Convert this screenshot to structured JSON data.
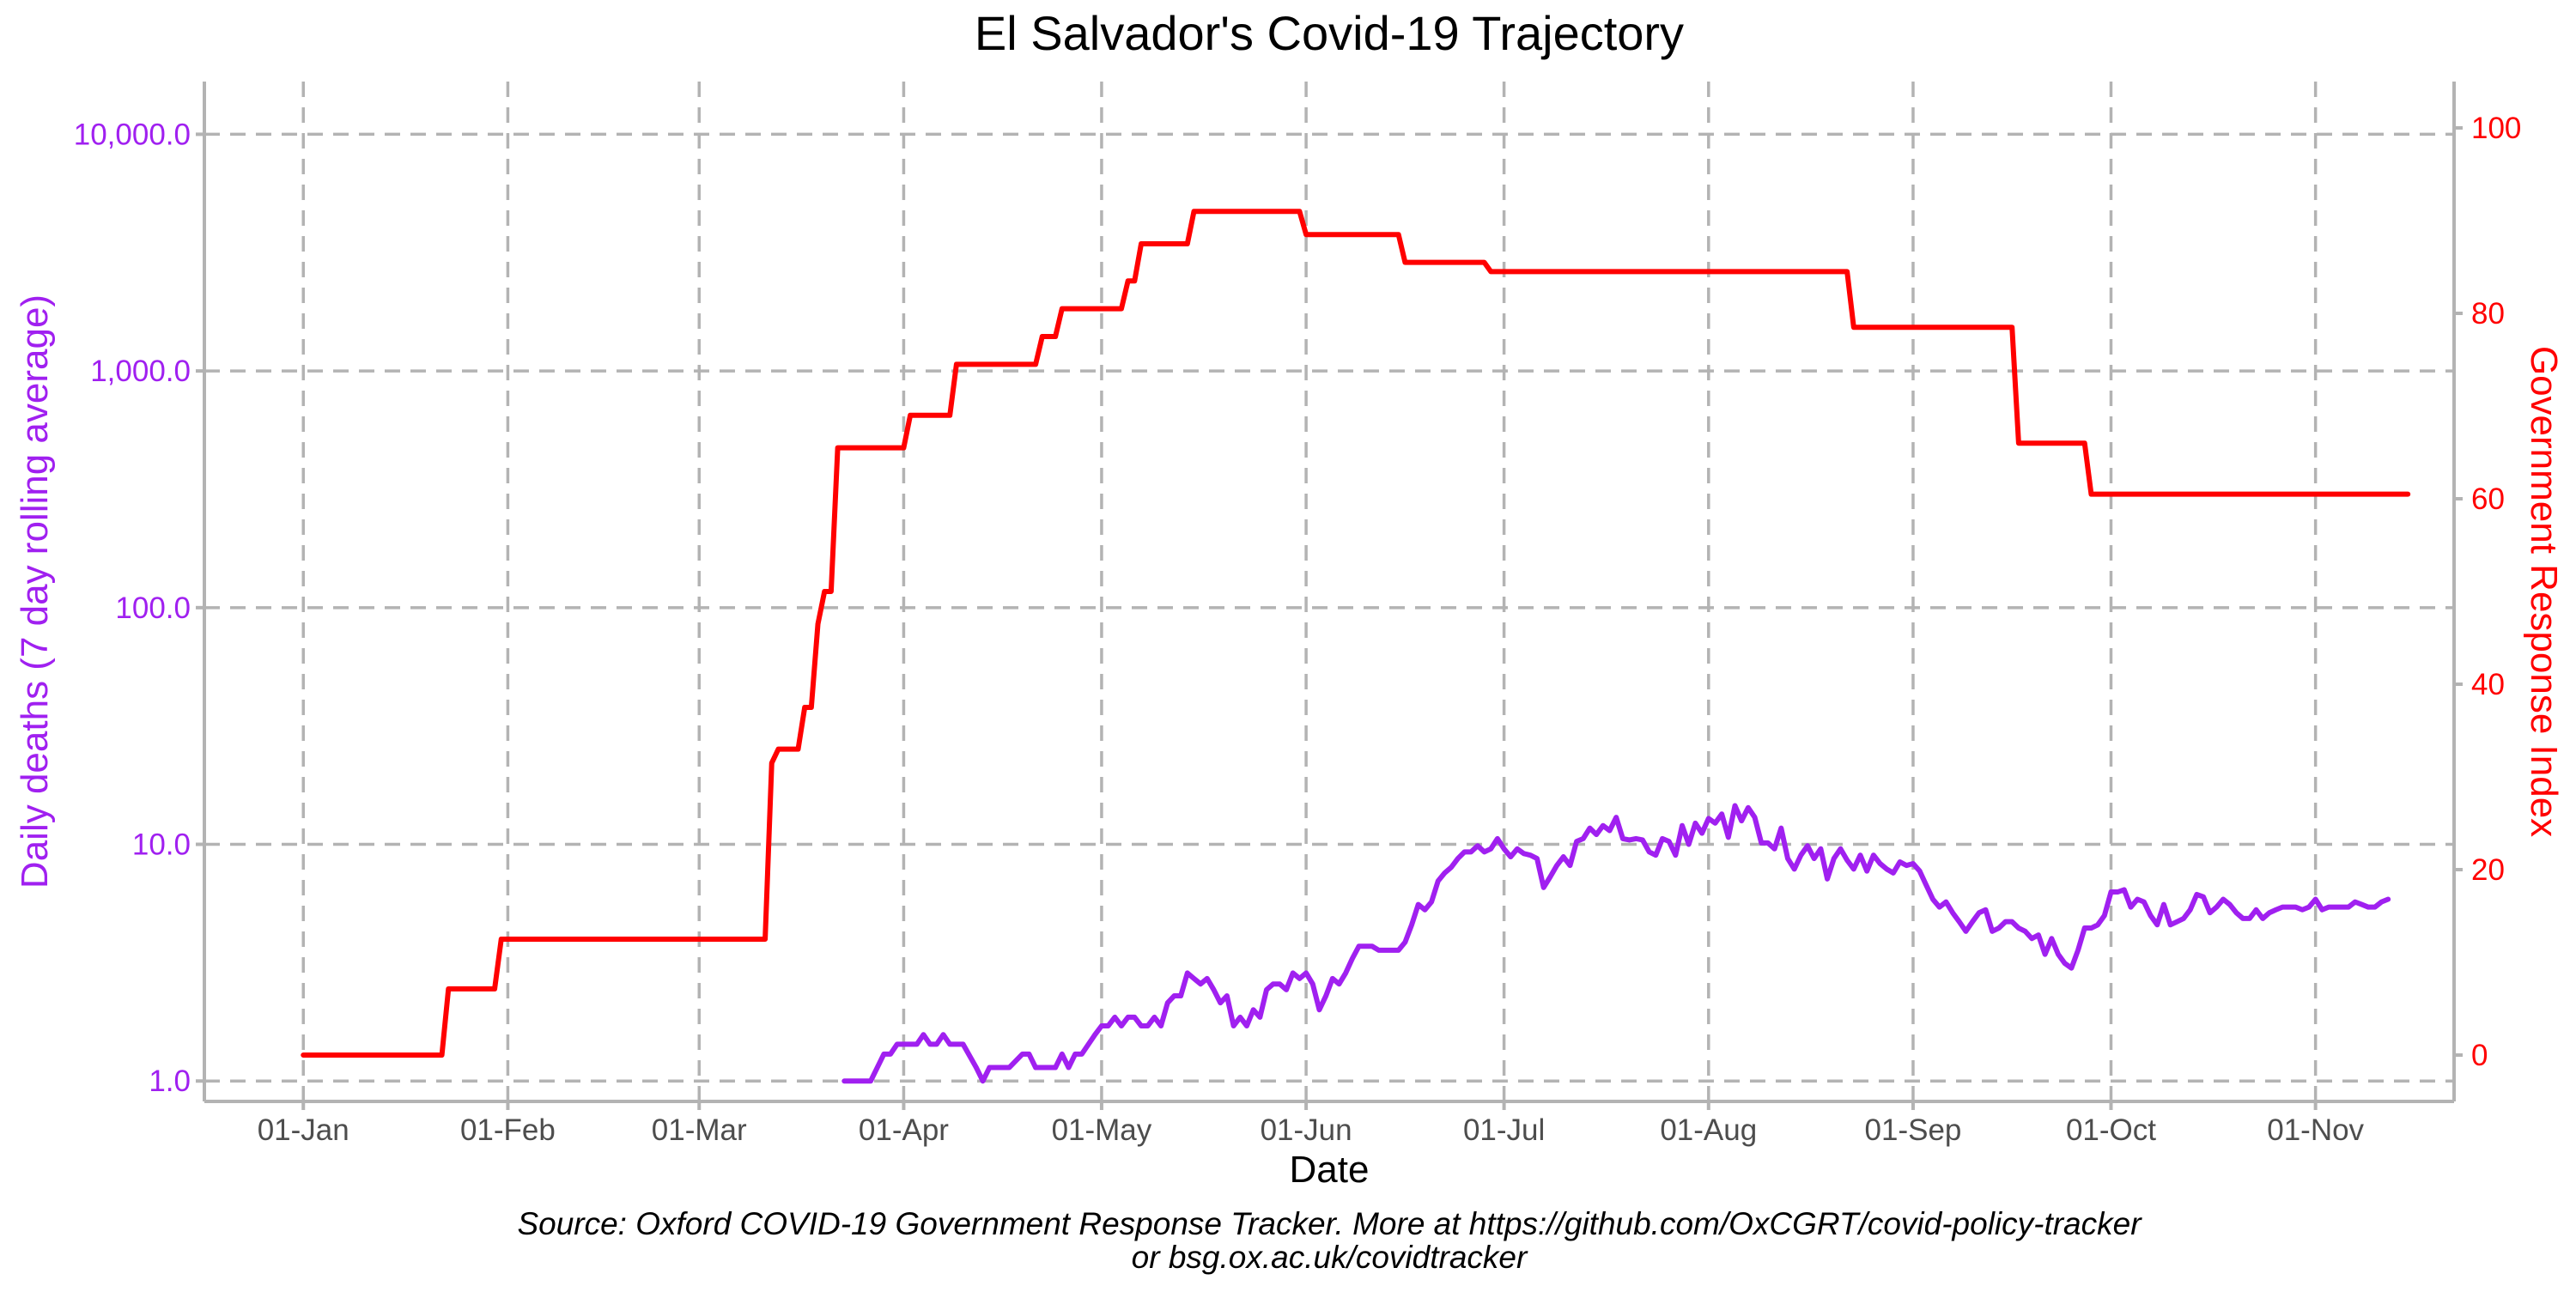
{
  "chart_data": {
    "type": "line",
    "title": "El Salvador's Covid-19 Trajectory",
    "xlabel": "Date",
    "ylabel_left": "Daily deaths (7 day rolling average)",
    "ylabel_right": "Government Response Index",
    "caption_line1": "Source: Oxford COVID-19 Government Response Tracker. More at https://github.com/OxCGRT/covid-policy-tracker",
    "caption_line2": "or bsg.ox.ac.uk/covidtracker",
    "x_ticks": [
      "01-Jan",
      "01-Feb",
      "01-Mar",
      "01-Apr",
      "01-May",
      "01-Jun",
      "01-Jul",
      "01-Aug",
      "01-Sep",
      "01-Oct",
      "01-Nov"
    ],
    "x_tick_dates": [
      "2020-01-01",
      "2020-02-01",
      "2020-03-01",
      "2020-04-01",
      "2020-05-01",
      "2020-06-01",
      "2020-07-01",
      "2020-08-01",
      "2020-09-01",
      "2020-10-01",
      "2020-11-01"
    ],
    "xlim": [
      "2019-12-17",
      "2020-11-22"
    ],
    "y_left": {
      "scale": "log10",
      "ylim": [
        0.82,
        16700
      ],
      "ticks": [
        1,
        10,
        100,
        1000,
        10000
      ],
      "tick_labels": [
        "1.0",
        "10.0",
        "100.0",
        "1,000.0",
        "10,000.0"
      ]
    },
    "y_right": {
      "scale": "linear",
      "ylim": [
        -5,
        105
      ],
      "ticks": [
        0,
        20,
        40,
        60,
        80,
        100
      ],
      "tick_labels": [
        "0",
        "20",
        "40",
        "60",
        "80",
        "100"
      ]
    },
    "grid": true,
    "colors": {
      "deaths": "#a020f0",
      "index": "#ff0000",
      "grid": "#b3b3b3",
      "text": "#4d4d4d"
    },
    "series": [
      {
        "axis": "right",
        "step": true,
        "points": [
          [
            "2020-01-01",
            0
          ],
          [
            "2020-01-22",
            0
          ],
          [
            "2020-01-23",
            7.14
          ],
          [
            "2020-01-30",
            7.14
          ],
          [
            "2020-01-31",
            12.5
          ],
          [
            "2020-03-11",
            12.5
          ],
          [
            "2020-03-12",
            31.5
          ],
          [
            "2020-03-13",
            33.0
          ],
          [
            "2020-03-16",
            33.0
          ],
          [
            "2020-03-17",
            37.5
          ],
          [
            "2020-03-18",
            37.5
          ],
          [
            "2020-03-19",
            46.5
          ],
          [
            "2020-03-20",
            50.0
          ],
          [
            "2020-03-21",
            50.0
          ],
          [
            "2020-03-22",
            65.5
          ],
          [
            "2020-04-01",
            65.5
          ],
          [
            "2020-04-02",
            69.0
          ],
          [
            "2020-04-08",
            69.0
          ],
          [
            "2020-04-09",
            74.5
          ],
          [
            "2020-04-21",
            74.5
          ],
          [
            "2020-04-22",
            77.5
          ],
          [
            "2020-04-24",
            77.5
          ],
          [
            "2020-04-25",
            80.5
          ],
          [
            "2020-05-04",
            80.5
          ],
          [
            "2020-05-05",
            83.5
          ],
          [
            "2020-05-06",
            83.5
          ],
          [
            "2020-05-07",
            87.5
          ],
          [
            "2020-05-14",
            87.5
          ],
          [
            "2020-05-15",
            91.0
          ],
          [
            "2020-05-31",
            91.0
          ],
          [
            "2020-06-01",
            88.5
          ],
          [
            "2020-06-15",
            88.5
          ],
          [
            "2020-06-16",
            85.5
          ],
          [
            "2020-06-28",
            85.5
          ],
          [
            "2020-06-29",
            84.5
          ],
          [
            "2020-08-22",
            84.5
          ],
          [
            "2020-08-23",
            78.5
          ],
          [
            "2020-09-16",
            78.5
          ],
          [
            "2020-09-17",
            66.0
          ],
          [
            "2020-09-27",
            66.0
          ],
          [
            "2020-09-28",
            60.5
          ],
          [
            "2020-11-15",
            60.5
          ]
        ]
      },
      {
        "axis": "left",
        "step": false,
        "points": [
          [
            "2020-03-23",
            1.0
          ],
          [
            "2020-03-27",
            1.0
          ],
          [
            "2020-03-29",
            1.3
          ],
          [
            "2020-03-30",
            1.3
          ],
          [
            "2020-03-31",
            1.43
          ],
          [
            "2020-04-03",
            1.43
          ],
          [
            "2020-04-04",
            1.57
          ],
          [
            "2020-04-05",
            1.43
          ],
          [
            "2020-04-06",
            1.43
          ],
          [
            "2020-04-07",
            1.57
          ],
          [
            "2020-04-08",
            1.43
          ],
          [
            "2020-04-10",
            1.43
          ],
          [
            "2020-04-12",
            1.14
          ],
          [
            "2020-04-13",
            1.0
          ],
          [
            "2020-04-14",
            1.14
          ],
          [
            "2020-04-17",
            1.14
          ],
          [
            "2020-04-19",
            1.3
          ],
          [
            "2020-04-20",
            1.3
          ],
          [
            "2020-04-21",
            1.14
          ],
          [
            "2020-04-24",
            1.14
          ],
          [
            "2020-04-25",
            1.3
          ],
          [
            "2020-04-26",
            1.14
          ],
          [
            "2020-04-27",
            1.3
          ],
          [
            "2020-04-28",
            1.3
          ],
          [
            "2020-04-30",
            1.57
          ],
          [
            "2020-05-01",
            1.71
          ],
          [
            "2020-05-02",
            1.71
          ],
          [
            "2020-05-03",
            1.86
          ],
          [
            "2020-05-04",
            1.71
          ],
          [
            "2020-05-05",
            1.86
          ],
          [
            "2020-05-06",
            1.86
          ],
          [
            "2020-05-07",
            1.71
          ],
          [
            "2020-05-08",
            1.71
          ],
          [
            "2020-05-09",
            1.86
          ],
          [
            "2020-05-10",
            1.71
          ],
          [
            "2020-05-11",
            2.14
          ],
          [
            "2020-05-12",
            2.29
          ],
          [
            "2020-05-13",
            2.29
          ],
          [
            "2020-05-14",
            2.86
          ],
          [
            "2020-05-15",
            2.71
          ],
          [
            "2020-05-16",
            2.57
          ],
          [
            "2020-05-17",
            2.71
          ],
          [
            "2020-05-18",
            2.43
          ],
          [
            "2020-05-19",
            2.14
          ],
          [
            "2020-05-20",
            2.29
          ],
          [
            "2020-05-21",
            1.71
          ],
          [
            "2020-05-22",
            1.86
          ],
          [
            "2020-05-23",
            1.71
          ],
          [
            "2020-05-24",
            2.0
          ],
          [
            "2020-05-25",
            1.86
          ],
          [
            "2020-05-26",
            2.43
          ],
          [
            "2020-05-27",
            2.57
          ],
          [
            "2020-05-28",
            2.57
          ],
          [
            "2020-05-29",
            2.43
          ],
          [
            "2020-05-30",
            2.86
          ],
          [
            "2020-05-31",
            2.71
          ],
          [
            "2020-06-01",
            2.86
          ],
          [
            "2020-06-02",
            2.57
          ],
          [
            "2020-06-03",
            2.0
          ],
          [
            "2020-06-04",
            2.29
          ],
          [
            "2020-06-05",
            2.71
          ],
          [
            "2020-06-06",
            2.57
          ],
          [
            "2020-06-07",
            2.86
          ],
          [
            "2020-06-08",
            3.29
          ],
          [
            "2020-06-09",
            3.71
          ],
          [
            "2020-06-11",
            3.71
          ],
          [
            "2020-06-12",
            3.57
          ],
          [
            "2020-06-15",
            3.57
          ],
          [
            "2020-06-16",
            3.86
          ],
          [
            "2020-06-17",
            4.57
          ],
          [
            "2020-06-18",
            5.57
          ],
          [
            "2020-06-19",
            5.29
          ],
          [
            "2020-06-20",
            5.71
          ],
          [
            "2020-06-21",
            7.0
          ],
          [
            "2020-06-22",
            7.57
          ],
          [
            "2020-06-23",
            8.0
          ],
          [
            "2020-06-24",
            8.71
          ],
          [
            "2020-06-25",
            9.29
          ],
          [
            "2020-06-26",
            9.29
          ],
          [
            "2020-06-27",
            9.86
          ],
          [
            "2020-06-28",
            9.29
          ],
          [
            "2020-06-29",
            9.57
          ],
          [
            "2020-06-30",
            10.57
          ],
          [
            "2020-07-01",
            9.57
          ],
          [
            "2020-07-02",
            8.86
          ],
          [
            "2020-07-03",
            9.57
          ],
          [
            "2020-07-04",
            9.14
          ],
          [
            "2020-07-05",
            9.0
          ],
          [
            "2020-07-06",
            8.71
          ],
          [
            "2020-07-07",
            6.57
          ],
          [
            "2020-07-08",
            7.29
          ],
          [
            "2020-07-09",
            8.14
          ],
          [
            "2020-07-10",
            8.86
          ],
          [
            "2020-07-11",
            8.14
          ],
          [
            "2020-07-12",
            10.29
          ],
          [
            "2020-07-13",
            10.57
          ],
          [
            "2020-07-14",
            11.71
          ],
          [
            "2020-07-15",
            11.0
          ],
          [
            "2020-07-16",
            12.0
          ],
          [
            "2020-07-17",
            11.43
          ],
          [
            "2020-07-18",
            13.0
          ],
          [
            "2020-07-19",
            10.57
          ],
          [
            "2020-07-20",
            10.43
          ],
          [
            "2020-07-21",
            10.57
          ],
          [
            "2020-07-22",
            10.43
          ],
          [
            "2020-07-23",
            9.29
          ],
          [
            "2020-07-24",
            9.0
          ],
          [
            "2020-07-25",
            10.57
          ],
          [
            "2020-07-26",
            10.29
          ],
          [
            "2020-07-27",
            9.0
          ],
          [
            "2020-07-28",
            12.0
          ],
          [
            "2020-07-29",
            10.0
          ],
          [
            "2020-07-30",
            12.29
          ],
          [
            "2020-07-31",
            11.14
          ],
          [
            "2020-08-01",
            12.86
          ],
          [
            "2020-08-02",
            12.29
          ],
          [
            "2020-08-03",
            13.43
          ],
          [
            "2020-08-04",
            10.71
          ],
          [
            "2020-08-05",
            14.57
          ],
          [
            "2020-08-06",
            12.57
          ],
          [
            "2020-08-07",
            14.29
          ],
          [
            "2020-08-08",
            13.0
          ],
          [
            "2020-08-09",
            10.14
          ],
          [
            "2020-08-10",
            10.14
          ],
          [
            "2020-08-11",
            9.57
          ],
          [
            "2020-08-12",
            11.71
          ],
          [
            "2020-08-13",
            8.71
          ],
          [
            "2020-08-14",
            7.86
          ],
          [
            "2020-08-15",
            9.0
          ],
          [
            "2020-08-16",
            9.86
          ],
          [
            "2020-08-17",
            8.71
          ],
          [
            "2020-08-18",
            9.57
          ],
          [
            "2020-08-19",
            7.14
          ],
          [
            "2020-08-20",
            8.71
          ],
          [
            "2020-08-21",
            9.57
          ],
          [
            "2020-08-22",
            8.57
          ],
          [
            "2020-08-23",
            7.86
          ],
          [
            "2020-08-24",
            9.0
          ],
          [
            "2020-08-25",
            7.71
          ],
          [
            "2020-08-26",
            9.0
          ],
          [
            "2020-08-27",
            8.29
          ],
          [
            "2020-08-28",
            7.86
          ],
          [
            "2020-08-29",
            7.57
          ],
          [
            "2020-08-30",
            8.43
          ],
          [
            "2020-08-31",
            8.14
          ],
          [
            "2020-09-01",
            8.29
          ],
          [
            "2020-09-02",
            7.71
          ],
          [
            "2020-09-03",
            6.71
          ],
          [
            "2020-09-04",
            5.86
          ],
          [
            "2020-09-05",
            5.43
          ],
          [
            "2020-09-06",
            5.71
          ],
          [
            "2020-09-07",
            5.14
          ],
          [
            "2020-09-08",
            4.71
          ],
          [
            "2020-09-09",
            4.29
          ],
          [
            "2020-09-10",
            4.71
          ],
          [
            "2020-09-11",
            5.14
          ],
          [
            "2020-09-12",
            5.29
          ],
          [
            "2020-09-13",
            4.29
          ],
          [
            "2020-09-14",
            4.43
          ],
          [
            "2020-09-15",
            4.71
          ],
          [
            "2020-09-16",
            4.71
          ],
          [
            "2020-09-17",
            4.43
          ],
          [
            "2020-09-18",
            4.29
          ],
          [
            "2020-09-19",
            4.0
          ],
          [
            "2020-09-20",
            4.14
          ],
          [
            "2020-09-21",
            3.43
          ],
          [
            "2020-09-22",
            4.0
          ],
          [
            "2020-09-23",
            3.43
          ],
          [
            "2020-09-24",
            3.14
          ],
          [
            "2020-09-25",
            3.0
          ],
          [
            "2020-09-26",
            3.57
          ],
          [
            "2020-09-27",
            4.43
          ],
          [
            "2020-09-28",
            4.43
          ],
          [
            "2020-09-29",
            4.57
          ],
          [
            "2020-09-30",
            5.0
          ],
          [
            "2020-10-01",
            6.29
          ],
          [
            "2020-10-02",
            6.29
          ],
          [
            "2020-10-03",
            6.43
          ],
          [
            "2020-10-04",
            5.43
          ],
          [
            "2020-10-05",
            5.86
          ],
          [
            "2020-10-06",
            5.71
          ],
          [
            "2020-10-07",
            5.0
          ],
          [
            "2020-10-08",
            4.57
          ],
          [
            "2020-10-09",
            5.57
          ],
          [
            "2020-10-10",
            4.57
          ],
          [
            "2020-10-11",
            4.71
          ],
          [
            "2020-10-12",
            4.86
          ],
          [
            "2020-10-13",
            5.29
          ],
          [
            "2020-10-14",
            6.14
          ],
          [
            "2020-10-15",
            6.0
          ],
          [
            "2020-10-16",
            5.14
          ],
          [
            "2020-10-17",
            5.43
          ],
          [
            "2020-10-18",
            5.86
          ],
          [
            "2020-10-19",
            5.57
          ],
          [
            "2020-10-20",
            5.14
          ],
          [
            "2020-10-21",
            4.86
          ],
          [
            "2020-10-22",
            4.86
          ],
          [
            "2020-10-23",
            5.29
          ],
          [
            "2020-10-24",
            4.86
          ],
          [
            "2020-10-25",
            5.14
          ],
          [
            "2020-10-26",
            5.29
          ],
          [
            "2020-10-27",
            5.43
          ],
          [
            "2020-10-29",
            5.43
          ],
          [
            "2020-10-30",
            5.29
          ],
          [
            "2020-10-31",
            5.43
          ],
          [
            "2020-11-01",
            5.86
          ],
          [
            "2020-11-02",
            5.29
          ],
          [
            "2020-11-03",
            5.43
          ],
          [
            "2020-11-04",
            5.43
          ],
          [
            "2020-11-06",
            5.43
          ],
          [
            "2020-11-07",
            5.71
          ],
          [
            "2020-11-08",
            5.57
          ],
          [
            "2020-11-09",
            5.43
          ],
          [
            "2020-11-10",
            5.43
          ],
          [
            "2020-11-11",
            5.71
          ],
          [
            "2020-11-12",
            5.86
          ]
        ]
      }
    ]
  }
}
